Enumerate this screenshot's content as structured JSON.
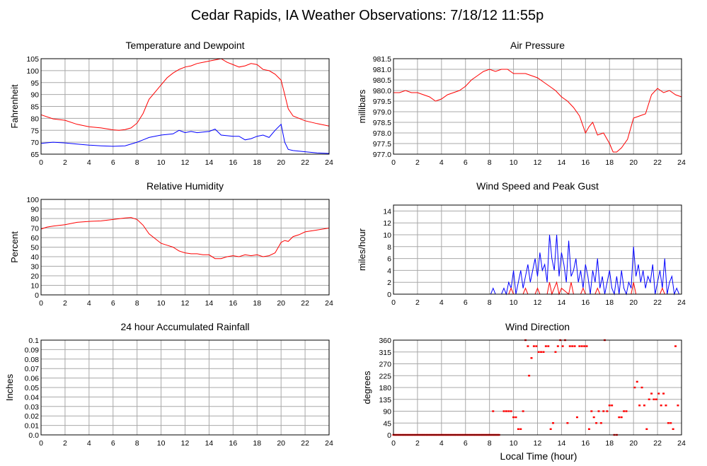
{
  "title": "Cedar Rapids, IA Weather Observations: 7/18/12 11:55p",
  "xlabel": "Local Time (hour)",
  "chart_data": [
    {
      "id": "temp",
      "type": "line",
      "title": "Temperature and Dewpoint",
      "ylabel": "Fahrenheit",
      "xlim": [
        0,
        24
      ],
      "ylim": [
        65,
        105
      ],
      "yticks": [
        65,
        70,
        75,
        80,
        85,
        90,
        95,
        100,
        105
      ],
      "xticks": [
        0,
        2,
        4,
        6,
        8,
        10,
        12,
        14,
        16,
        18,
        20,
        22,
        24
      ],
      "grid": true,
      "series": [
        {
          "color": "#ff0000",
          "x": [
            0,
            1,
            2,
            3,
            4,
            5,
            6,
            6.5,
            7,
            7.5,
            8,
            8.5,
            9,
            9.5,
            10,
            10.5,
            11,
            11.5,
            12,
            12.5,
            13,
            13.5,
            14,
            14.5,
            15,
            15.5,
            16,
            16.5,
            17,
            17.5,
            18,
            18.5,
            19,
            19.5,
            20,
            20.3,
            20.6,
            21,
            22,
            23,
            24
          ],
          "y": [
            81.5,
            79.8,
            79.2,
            77.5,
            76.5,
            76,
            75.2,
            75,
            75.3,
            76,
            78,
            82,
            88,
            91,
            94,
            97,
            99,
            100.5,
            101.5,
            102,
            103,
            103.5,
            104,
            104.5,
            105,
            103.5,
            102.5,
            101.5,
            102,
            103,
            102.5,
            100.5,
            100,
            98.5,
            96,
            90,
            84,
            81,
            79,
            77.8,
            76.8
          ]
        },
        {
          "color": "#0000ff",
          "x": [
            0,
            1,
            2,
            3,
            4,
            5,
            6,
            7,
            8,
            8.5,
            9,
            10,
            11,
            11.5,
            12,
            12.5,
            13,
            14,
            14.5,
            15,
            16,
            16.5,
            17,
            17.5,
            18,
            18.5,
            19,
            19.5,
            20,
            20.3,
            20.6,
            21,
            22,
            23,
            24
          ],
          "y": [
            69.5,
            70,
            69.7,
            69.2,
            68.8,
            68.5,
            68.3,
            68.5,
            70,
            71,
            72,
            73,
            73.5,
            75,
            74,
            74.5,
            74,
            74.5,
            75.5,
            73,
            72.5,
            72.5,
            71,
            71.5,
            72.5,
            73,
            72,
            75,
            77.5,
            70,
            67,
            66.5,
            66,
            65.5,
            65.3
          ]
        }
      ]
    },
    {
      "id": "pres",
      "type": "line",
      "title": "Air Pressure",
      "ylabel": "millibars",
      "xlim": [
        0,
        24
      ],
      "ylim": [
        977.0,
        981.5
      ],
      "yticks": [
        "977.0",
        "977.5",
        "978.0",
        "978.5",
        "979.0",
        "979.5",
        "980.0",
        "980.5",
        "981.0",
        "981.5"
      ],
      "xticks": [
        0,
        2,
        4,
        6,
        8,
        10,
        12,
        14,
        16,
        18,
        20,
        22,
        24
      ],
      "grid": true,
      "series": [
        {
          "color": "#ff0000",
          "x": [
            0,
            0.5,
            1,
            1.5,
            2,
            2.5,
            3,
            3.5,
            4,
            4.5,
            5,
            5.5,
            6,
            6.5,
            7,
            7.5,
            8,
            8.5,
            9,
            9.5,
            10,
            10.5,
            11,
            11.5,
            12,
            12.5,
            13,
            13.5,
            14,
            14.5,
            15,
            15.5,
            16,
            16.3,
            16.6,
            17,
            17.5,
            18,
            18.3,
            18.6,
            19,
            19.5,
            20,
            20.5,
            21,
            21.5,
            22,
            22.5,
            23,
            23.5,
            24
          ],
          "y": [
            979.9,
            979.9,
            980.0,
            979.9,
            979.9,
            979.8,
            979.7,
            979.5,
            979.6,
            979.8,
            979.9,
            980.0,
            980.2,
            980.5,
            980.7,
            980.9,
            981.0,
            980.9,
            981.0,
            981.0,
            980.8,
            980.8,
            980.8,
            980.7,
            980.6,
            980.4,
            980.2,
            980.0,
            979.7,
            979.5,
            979.2,
            978.8,
            978.0,
            978.3,
            978.5,
            977.9,
            978.0,
            977.5,
            977.1,
            977.1,
            977.3,
            977.7,
            978.7,
            978.8,
            978.9,
            979.8,
            980.1,
            979.9,
            980.0,
            979.8,
            979.7
          ]
        }
      ]
    },
    {
      "id": "rh",
      "type": "line",
      "title": "Relative Humidity",
      "ylabel": "Percent",
      "xlim": [
        0,
        24
      ],
      "ylim": [
        0,
        100
      ],
      "yticks": [
        0,
        10,
        20,
        30,
        40,
        50,
        60,
        70,
        80,
        90,
        100
      ],
      "xticks": [
        0,
        2,
        4,
        6,
        8,
        10,
        12,
        14,
        16,
        18,
        20,
        22,
        24
      ],
      "grid": true,
      "series": [
        {
          "color": "#ff0000",
          "x": [
            0,
            0.5,
            1,
            2,
            3,
            4,
            5,
            6,
            7,
            7.5,
            8,
            8.5,
            9,
            9.5,
            10,
            10.5,
            11,
            11.5,
            12,
            12.5,
            13,
            13.5,
            14,
            14.5,
            15,
            15.5,
            16,
            16.5,
            17,
            17.5,
            18,
            18.5,
            19,
            19.5,
            20,
            20.3,
            20.6,
            21,
            21.5,
            22,
            23,
            24
          ],
          "y": [
            69,
            71,
            72,
            73.5,
            76,
            77,
            77.5,
            79,
            80.5,
            81,
            79,
            73,
            64,
            59,
            54,
            52,
            50,
            46,
            44,
            43,
            43,
            42,
            42,
            38,
            38,
            40,
            41,
            40,
            42,
            41,
            42,
            40,
            41,
            44,
            55,
            57,
            56,
            61,
            63,
            66,
            68,
            70
          ]
        }
      ]
    },
    {
      "id": "wind",
      "type": "line",
      "title": "Wind Speed and Peak Gust",
      "ylabel": "miles/hour",
      "xlim": [
        0,
        24
      ],
      "ylim": [
        0,
        15
      ],
      "yticks": [
        0,
        2,
        4,
        6,
        8,
        10,
        12,
        14
      ],
      "xticks": [
        0,
        2,
        4,
        6,
        8,
        10,
        12,
        14,
        16,
        18,
        20,
        22,
        24
      ],
      "grid": true,
      "series": [
        {
          "color": "#0000ff",
          "x": [
            0,
            8.1,
            8.3,
            8.5,
            9,
            9.2,
            9.4,
            9.6,
            9.8,
            10,
            10.2,
            10.4,
            10.6,
            10.8,
            11,
            11.2,
            11.4,
            11.6,
            11.8,
            12,
            12.2,
            12.4,
            12.6,
            12.8,
            13,
            13.2,
            13.4,
            13.6,
            13.8,
            14,
            14.2,
            14.4,
            14.6,
            14.8,
            15,
            15.2,
            15.4,
            15.6,
            15.8,
            16,
            16.2,
            16.4,
            16.6,
            16.8,
            17,
            17.2,
            17.4,
            17.6,
            17.8,
            18,
            18.2,
            18.4,
            18.6,
            18.8,
            19,
            19.2,
            19.4,
            19.6,
            19.8,
            20,
            20.2,
            20.4,
            20.6,
            20.8,
            21,
            21.2,
            21.4,
            21.6,
            21.8,
            22,
            22.2,
            22.4,
            22.6,
            22.8,
            23,
            23.2,
            23.4,
            23.6,
            23.8,
            24
          ],
          "y": [
            0,
            0,
            1,
            0,
            0,
            1,
            0,
            2,
            1,
            4,
            0,
            2,
            4,
            1,
            3,
            5,
            2,
            4,
            6,
            3,
            7,
            4,
            5,
            2,
            10,
            6,
            4,
            10,
            3,
            7,
            5,
            2,
            9,
            3,
            4,
            6,
            2,
            4,
            1,
            5,
            3,
            0,
            4,
            2,
            6,
            1,
            3,
            0,
            2,
            4,
            1,
            0,
            3,
            0,
            4,
            1,
            0,
            2,
            1,
            8,
            3,
            5,
            2,
            4,
            1,
            3,
            2,
            5,
            0,
            2,
            4,
            1,
            6,
            0,
            2,
            3,
            0,
            1,
            0,
            0
          ]
        },
        {
          "color": "#ff0000",
          "x": [
            0,
            9.6,
            9.8,
            10,
            10.2,
            10.8,
            11,
            11.2,
            11.8,
            12,
            12.2,
            12.8,
            13,
            13.2,
            13.4,
            13.6,
            13.8,
            14,
            14.6,
            14.8,
            15,
            15.6,
            15.8,
            16,
            16.8,
            17,
            17.2,
            17.8,
            18,
            19.8,
            20,
            20.2,
            22.2,
            22.4,
            22.6,
            24
          ],
          "y": [
            0,
            0,
            1,
            0,
            0,
            0,
            1,
            0,
            0,
            1,
            0,
            0,
            2,
            0,
            1,
            2,
            0,
            1,
            0,
            2,
            0,
            0,
            1,
            0,
            0,
            1,
            0,
            0,
            0,
            0,
            2,
            0,
            0,
            1,
            0,
            0
          ]
        }
      ]
    },
    {
      "id": "rain",
      "type": "line",
      "title": "24 hour Accumulated Rainfall",
      "ylabel": "Inches",
      "xlim": [
        0,
        24
      ],
      "ylim": [
        0,
        0.1
      ],
      "yticks": [
        "0.0",
        "0.01",
        "0.02",
        "0.03",
        "0.04",
        "0.05",
        "0.06",
        "0.07",
        "0.08",
        "0.09",
        "0.1"
      ],
      "xticks": [
        0,
        2,
        4,
        6,
        8,
        10,
        12,
        14,
        16,
        18,
        20,
        22,
        24
      ],
      "grid": true,
      "series": [
        {
          "color": "#ff0000",
          "x": [
            0,
            24
          ],
          "y": [
            0,
            0
          ]
        }
      ]
    },
    {
      "id": "wdir",
      "type": "scatter",
      "title": "Wind Direction",
      "ylabel": "degrees",
      "xlim": [
        0,
        24
      ],
      "ylim": [
        0,
        360
      ],
      "yticks": [
        0,
        45,
        90,
        135,
        180,
        225,
        270,
        315,
        360
      ],
      "xticks": [
        0,
        2,
        4,
        6,
        8,
        10,
        12,
        14,
        16,
        18,
        20,
        22,
        24
      ],
      "grid": true,
      "series": [
        {
          "color": "#ff0000",
          "x": [
            8.3,
            9.2,
            9.4,
            9.6,
            9.8,
            10.0,
            10.2,
            10.4,
            10.6,
            10.8,
            11.0,
            11.2,
            11.3,
            11.5,
            11.7,
            11.9,
            12.1,
            12.3,
            12.5,
            12.7,
            12.9,
            13.1,
            13.3,
            13.5,
            13.7,
            13.9,
            14.1,
            14.3,
            14.5,
            14.7,
            14.9,
            15.1,
            15.3,
            15.5,
            15.7,
            15.9,
            16.1,
            16.3,
            16.5,
            16.7,
            16.9,
            17.1,
            17.3,
            17.5,
            17.6,
            17.8,
            18.0,
            18.2,
            18.4,
            18.6,
            18.8,
            19.0,
            19.2,
            19.4,
            20.1,
            20.3,
            20.5,
            20.7,
            20.9,
            21.1,
            21.3,
            21.5,
            21.7,
            21.9,
            22.1,
            22.3,
            22.5,
            22.7,
            22.9,
            23.1,
            23.3,
            23.5,
            23.7
          ],
          "y": [
            90,
            90,
            90,
            90,
            90,
            67,
            67,
            22,
            22,
            90,
            360,
            337,
            225,
            292,
            337,
            337,
            315,
            315,
            315,
            337,
            337,
            22,
            45,
            315,
            337,
            360,
            337,
            360,
            45,
            337,
            337,
            337,
            67,
            337,
            337,
            337,
            337,
            22,
            90,
            67,
            45,
            90,
            45,
            90,
            360,
            90,
            112,
            112,
            0,
            0,
            67,
            67,
            90,
            90,
            180,
            202,
            112,
            180,
            112,
            22,
            135,
            157,
            135,
            135,
            157,
            112,
            157,
            112,
            45,
            45,
            22,
            337,
            112
          ]
        }
      ]
    }
  ]
}
